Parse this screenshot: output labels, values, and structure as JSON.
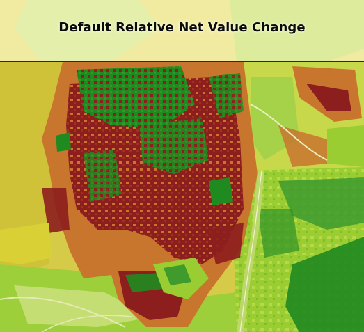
{
  "map": {
    "title": "Default Relative Net Value Change",
    "class_colors": {
      "strong_loss": "#8c1e1e",
      "loss": "#c8762e",
      "neutral": "#d8cc3c",
      "gain": "#9acd32",
      "strong_gain": "#1f8a1f",
      "title_band": "#f6efaa"
    }
  }
}
